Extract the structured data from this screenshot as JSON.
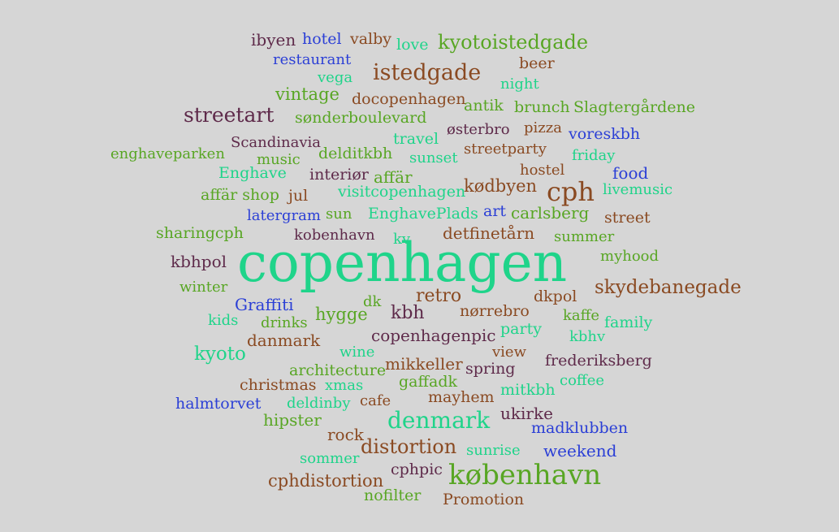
{
  "palette": {
    "brown": "#8a4a22",
    "plum": "#5e2a4a",
    "blue": "#2b3fd6",
    "green": "#58a624",
    "teal": "#1fd48a",
    "olive": "#6a9a2a",
    "background": "#d6d6d6"
  },
  "words": [
    {
      "text": "ibyen",
      "color": "plum"
    },
    {
      "text": "hotel",
      "color": "blue"
    },
    {
      "text": "valby",
      "color": "brown"
    },
    {
      "text": "love",
      "color": "teal"
    },
    {
      "text": "kyotoistedgade",
      "color": "green"
    },
    {
      "text": "restaurant",
      "color": "blue"
    },
    {
      "text": "beer",
      "color": "brown"
    },
    {
      "text": "vega",
      "color": "teal"
    },
    {
      "text": "istedgade",
      "color": "brown"
    },
    {
      "text": "night",
      "color": "teal"
    },
    {
      "text": "vintage",
      "color": "green"
    },
    {
      "text": "docopenhagen",
      "color": "brown"
    },
    {
      "text": "antik",
      "color": "green"
    },
    {
      "text": "brunch",
      "color": "green"
    },
    {
      "text": "Slagtergårdene",
      "color": "green"
    },
    {
      "text": "streetart",
      "color": "plum"
    },
    {
      "text": "sønderboulevard",
      "color": "green"
    },
    {
      "text": "østerbro",
      "color": "plum"
    },
    {
      "text": "pizza",
      "color": "brown"
    },
    {
      "text": "voreskbh",
      "color": "blue"
    },
    {
      "text": "Scandinavia",
      "color": "plum"
    },
    {
      "text": "travel",
      "color": "teal"
    },
    {
      "text": "enghaveparken",
      "color": "green"
    },
    {
      "text": "music",
      "color": "green"
    },
    {
      "text": "delditkbh",
      "color": "green"
    },
    {
      "text": "sunset",
      "color": "teal"
    },
    {
      "text": "streetparty",
      "color": "brown"
    },
    {
      "text": "friday",
      "color": "teal"
    },
    {
      "text": "Enghave",
      "color": "teal"
    },
    {
      "text": "interiør",
      "color": "plum"
    },
    {
      "text": "affär",
      "color": "green"
    },
    {
      "text": "hostel",
      "color": "brown"
    },
    {
      "text": "food",
      "color": "blue"
    },
    {
      "text": "affär shop",
      "color": "green"
    },
    {
      "text": "jul",
      "color": "brown"
    },
    {
      "text": "visitcopenhagen",
      "color": "teal"
    },
    {
      "text": "kødbyen",
      "color": "brown"
    },
    {
      "text": "cph",
      "color": "brown"
    },
    {
      "text": "livemusic",
      "color": "teal"
    },
    {
      "text": "latergram",
      "color": "blue"
    },
    {
      "text": "sun",
      "color": "green"
    },
    {
      "text": "EnghavePlads",
      "color": "teal"
    },
    {
      "text": "art",
      "color": "blue"
    },
    {
      "text": "carlsberg",
      "color": "green"
    },
    {
      "text": "street",
      "color": "brown"
    },
    {
      "text": "sharingcph",
      "color": "green"
    },
    {
      "text": "kobenhavn",
      "color": "plum"
    },
    {
      "text": "kv",
      "color": "teal"
    },
    {
      "text": "detfinetårn",
      "color": "brown"
    },
    {
      "text": "summer",
      "color": "green"
    },
    {
      "text": "kbhpol",
      "color": "plum"
    },
    {
      "text": "copenhagen",
      "color": "teal"
    },
    {
      "text": "myhood",
      "color": "green"
    },
    {
      "text": "winter",
      "color": "green"
    },
    {
      "text": "skydebanegade",
      "color": "brown"
    },
    {
      "text": "retro",
      "color": "brown"
    },
    {
      "text": "dkpol",
      "color": "brown"
    },
    {
      "text": "Graffiti",
      "color": "blue"
    },
    {
      "text": "dk",
      "color": "green"
    },
    {
      "text": "hygge",
      "color": "green"
    },
    {
      "text": "kbh",
      "color": "plum"
    },
    {
      "text": "nørrebro",
      "color": "brown"
    },
    {
      "text": "kaffe",
      "color": "green"
    },
    {
      "text": "kids",
      "color": "teal"
    },
    {
      "text": "drinks",
      "color": "green"
    },
    {
      "text": "family",
      "color": "teal"
    },
    {
      "text": "party",
      "color": "teal"
    },
    {
      "text": "danmark",
      "color": "brown"
    },
    {
      "text": "copenhagenpic",
      "color": "plum"
    },
    {
      "text": "kbhv",
      "color": "teal"
    },
    {
      "text": "kyoto",
      "color": "teal"
    },
    {
      "text": "wine",
      "color": "teal"
    },
    {
      "text": "view",
      "color": "brown"
    },
    {
      "text": "frederiksberg",
      "color": "plum"
    },
    {
      "text": "mikkeller",
      "color": "brown"
    },
    {
      "text": "architecture",
      "color": "green"
    },
    {
      "text": "spring",
      "color": "plum"
    },
    {
      "text": "coffee",
      "color": "teal"
    },
    {
      "text": "christmas",
      "color": "brown"
    },
    {
      "text": "xmas",
      "color": "teal"
    },
    {
      "text": "gaffadk",
      "color": "green"
    },
    {
      "text": "mitkbh",
      "color": "teal"
    },
    {
      "text": "halmtorvet",
      "color": "blue"
    },
    {
      "text": "deldinby",
      "color": "teal"
    },
    {
      "text": "cafe",
      "color": "brown"
    },
    {
      "text": "mayhem",
      "color": "brown"
    },
    {
      "text": "hipster",
      "color": "green"
    },
    {
      "text": "ukirke",
      "color": "plum"
    },
    {
      "text": "denmark",
      "color": "teal"
    },
    {
      "text": "madklubben",
      "color": "blue"
    },
    {
      "text": "rock",
      "color": "brown"
    },
    {
      "text": "distortion",
      "color": "brown"
    },
    {
      "text": "sunrise",
      "color": "teal"
    },
    {
      "text": "weekend",
      "color": "blue"
    },
    {
      "text": "sommer",
      "color": "teal"
    },
    {
      "text": "cphpic",
      "color": "plum"
    },
    {
      "text": "københavn",
      "color": "green"
    },
    {
      "text": "cphdistortion",
      "color": "brown"
    },
    {
      "text": "nofilter",
      "color": "green"
    },
    {
      "text": "Promotion",
      "color": "brown"
    }
  ]
}
